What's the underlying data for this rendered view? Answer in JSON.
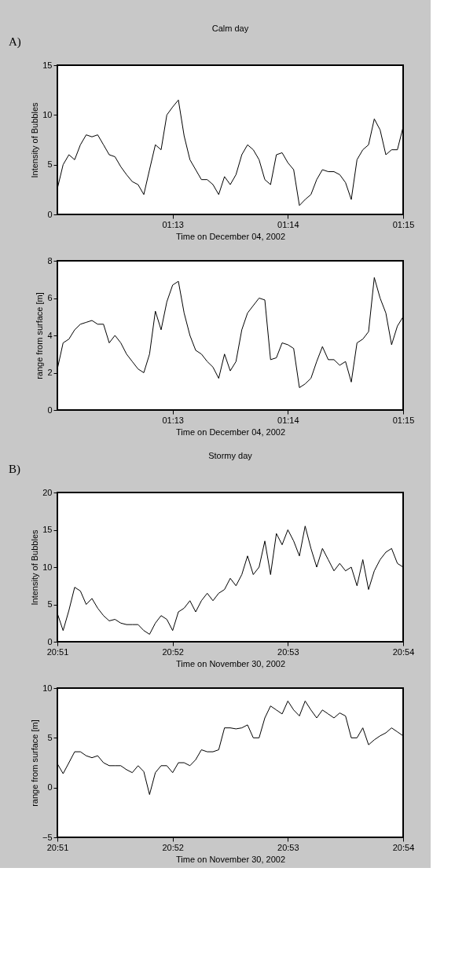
{
  "chart_data": [
    {
      "type": "line",
      "title": "Calm day",
      "annotations": [
        "A)"
      ],
      "xlabel": "Time on December 04, 2002",
      "ylabel": "Intensity of Bubbles",
      "x": [
        1.2,
        1.20083,
        1.20167,
        1.2025,
        1.20333,
        1.20417,
        1.205,
        1.20583,
        1.20667,
        1.2075,
        1.20833,
        1.20917,
        1.21,
        1.21083,
        1.21167,
        1.2125,
        1.21333,
        1.21417,
        1.215,
        1.21583,
        1.21667,
        1.2175,
        1.21833,
        1.21917,
        1.22,
        1.22083,
        1.22167,
        1.2225,
        1.22333,
        1.22417,
        1.225,
        1.22583,
        1.22667,
        1.2275,
        1.22833,
        1.22917,
        1.23,
        1.23083,
        1.23167,
        1.2325,
        1.23333,
        1.23417,
        1.235,
        1.23583,
        1.23667,
        1.2375,
        1.23833,
        1.23917,
        1.24,
        1.24083,
        1.24167,
        1.2425,
        1.24333,
        1.24417,
        1.245,
        1.24583,
        1.24667,
        1.2475,
        1.24833,
        1.24917,
        1.25
      ],
      "series": [
        {
          "color": "#000000",
          "values": [
            2.6,
            5.0,
            6.0,
            5.5,
            7.0,
            8.0,
            7.8,
            8.0,
            7.0,
            6.0,
            5.8,
            4.8,
            4.0,
            3.3,
            3.0,
            2.0,
            4.5,
            7.0,
            6.5,
            10.0,
            10.8,
            11.5,
            7.9,
            5.5,
            4.5,
            3.5,
            3.5,
            3.0,
            2.0,
            3.8,
            3.0,
            4.0,
            6.0,
            7.0,
            6.5,
            5.5,
            3.5,
            3.0,
            6.0,
            6.2,
            5.2,
            4.5,
            0.9,
            1.5,
            2.0,
            3.5,
            4.5,
            4.3,
            4.3,
            4.0,
            3.2,
            1.5,
            5.5,
            6.5,
            7.0,
            9.6,
            8.5,
            6.0,
            6.5,
            6.5,
            8.8
          ]
        }
      ],
      "xlim": [
        1.2,
        1.25
      ],
      "xticks": [
        {
          "value": 1.21667,
          "label": "01:13"
        },
        {
          "value": 1.23333,
          "label": "01:14"
        },
        {
          "value": 1.25,
          "label": "01:15"
        }
      ],
      "ylim": [
        0,
        15
      ],
      "yticks": [
        0,
        5,
        10,
        15
      ],
      "grid": false
    },
    {
      "type": "line",
      "xlabel": "Time on December 04, 2002",
      "ylabel": "range from surface [m]",
      "x": [
        1.2,
        1.20083,
        1.20167,
        1.2025,
        1.20333,
        1.20417,
        1.205,
        1.20583,
        1.20667,
        1.2075,
        1.20833,
        1.20917,
        1.21,
        1.21083,
        1.21167,
        1.2125,
        1.21333,
        1.21417,
        1.215,
        1.21583,
        1.21667,
        1.2175,
        1.21833,
        1.21917,
        1.22,
        1.22083,
        1.22167,
        1.2225,
        1.22333,
        1.22417,
        1.225,
        1.22583,
        1.22667,
        1.2275,
        1.22833,
        1.22917,
        1.23,
        1.23083,
        1.23167,
        1.2325,
        1.23333,
        1.23417,
        1.235,
        1.23583,
        1.23667,
        1.2375,
        1.23833,
        1.23917,
        1.24,
        1.24083,
        1.24167,
        1.2425,
        1.24333,
        1.24417,
        1.245,
        1.24583,
        1.24667,
        1.2475,
        1.24833,
        1.24917,
        1.25
      ],
      "series": [
        {
          "color": "#000000",
          "values": [
            2.2,
            3.6,
            3.8,
            4.3,
            4.6,
            4.7,
            4.8,
            4.6,
            4.6,
            3.6,
            4.0,
            3.6,
            3.0,
            2.6,
            2.2,
            2.0,
            3.0,
            5.3,
            4.3,
            5.8,
            6.7,
            6.9,
            5.2,
            4.0,
            3.2,
            3.0,
            2.6,
            2.3,
            1.7,
            3.0,
            2.1,
            2.6,
            4.3,
            5.2,
            5.6,
            6.0,
            5.9,
            2.7,
            2.8,
            3.6,
            3.5,
            3.3,
            1.2,
            1.4,
            1.7,
            2.6,
            3.4,
            2.7,
            2.7,
            2.4,
            2.6,
            1.5,
            3.6,
            3.8,
            4.2,
            7.1,
            6.0,
            5.2,
            3.5,
            4.5,
            5.0
          ]
        }
      ],
      "xlim": [
        1.2,
        1.25
      ],
      "xticks": [
        {
          "value": 1.21667,
          "label": "01:13"
        },
        {
          "value": 1.23333,
          "label": "01:14"
        },
        {
          "value": 1.25,
          "label": "01:15"
        }
      ],
      "ylim": [
        0,
        8
      ],
      "yticks": [
        0,
        2,
        4,
        6,
        8
      ],
      "grid": false
    },
    {
      "type": "line",
      "title": "Stormy day",
      "annotations": [
        "B)"
      ],
      "xlabel": "Time on November 30, 2002",
      "ylabel": "Intensity of Bubbles",
      "x": [
        20.85,
        20.85083,
        20.85167,
        20.8525,
        20.85333,
        20.85417,
        20.855,
        20.85583,
        20.85667,
        20.8575,
        20.85833,
        20.85917,
        20.86,
        20.86083,
        20.86167,
        20.8625,
        20.86333,
        20.86417,
        20.865,
        20.86583,
        20.86667,
        20.8675,
        20.86833,
        20.86917,
        20.87,
        20.87083,
        20.87167,
        20.8725,
        20.87333,
        20.87417,
        20.875,
        20.87583,
        20.87667,
        20.8775,
        20.87833,
        20.87917,
        20.88,
        20.88083,
        20.88167,
        20.8825,
        20.88333,
        20.88417,
        20.885,
        20.88583,
        20.88667,
        20.8875,
        20.88833,
        20.88917,
        20.89,
        20.89083,
        20.89167,
        20.8925,
        20.89333,
        20.89417,
        20.895,
        20.89583,
        20.89667,
        20.8975,
        20.89833,
        20.89917,
        20.9
      ],
      "series": [
        {
          "color": "#000000",
          "values": [
            3.8,
            1.5,
            4.2,
            7.3,
            6.8,
            5.0,
            5.8,
            4.5,
            3.5,
            2.8,
            3.0,
            2.5,
            2.3,
            2.3,
            2.3,
            1.5,
            1.0,
            2.5,
            3.5,
            3.0,
            1.5,
            4.0,
            4.5,
            5.5,
            4.0,
            5.5,
            6.5,
            5.5,
            6.5,
            7.0,
            8.5,
            7.5,
            9.0,
            11.5,
            9.0,
            10.0,
            13.5,
            9.0,
            14.5,
            13.0,
            15.0,
            13.5,
            11.5,
            15.5,
            12.5,
            10.0,
            12.5,
            11.0,
            9.5,
            10.5,
            9.5,
            10.0,
            7.5,
            11.0,
            7.0,
            9.5,
            11.0,
            12.0,
            12.5,
            10.5,
            10.0
          ]
        }
      ],
      "xlim": [
        20.85,
        20.9
      ],
      "xticks": [
        {
          "value": 20.85,
          "label": "20:51"
        },
        {
          "value": 20.86667,
          "label": "20:52"
        },
        {
          "value": 20.88333,
          "label": "20:53"
        },
        {
          "value": 20.9,
          "label": "20:54"
        }
      ],
      "ylim": [
        0,
        20
      ],
      "yticks": [
        0,
        5,
        10,
        15,
        20
      ],
      "grid": false
    },
    {
      "type": "line",
      "xlabel": "Time on November 30, 2002",
      "ylabel": "range from surface [m]",
      "x": [
        20.85,
        20.85083,
        20.85167,
        20.8525,
        20.85333,
        20.85417,
        20.855,
        20.85583,
        20.85667,
        20.8575,
        20.85833,
        20.85917,
        20.86,
        20.86083,
        20.86167,
        20.8625,
        20.86333,
        20.86417,
        20.865,
        20.86583,
        20.86667,
        20.8675,
        20.86833,
        20.86917,
        20.87,
        20.87083,
        20.87167,
        20.8725,
        20.87333,
        20.87417,
        20.875,
        20.87583,
        20.87667,
        20.8775,
        20.87833,
        20.87917,
        20.88,
        20.88083,
        20.88167,
        20.8825,
        20.88333,
        20.88417,
        20.885,
        20.88583,
        20.88667,
        20.8875,
        20.88833,
        20.88917,
        20.89,
        20.89083,
        20.89167,
        20.8925,
        20.89333,
        20.89417,
        20.895,
        20.89583,
        20.89667,
        20.8975,
        20.89833,
        20.89917,
        20.9
      ],
      "series": [
        {
          "color": "#000000",
          "values": [
            2.4,
            1.4,
            2.5,
            3.6,
            3.6,
            3.2,
            3.0,
            3.2,
            2.5,
            2.2,
            2.2,
            2.2,
            1.8,
            1.5,
            2.2,
            1.6,
            -0.7,
            1.5,
            2.2,
            2.2,
            1.5,
            2.5,
            2.5,
            2.2,
            2.8,
            3.8,
            3.6,
            3.6,
            3.8,
            6.0,
            6.0,
            5.9,
            6.0,
            6.3,
            5.0,
            5.0,
            7.0,
            8.2,
            7.8,
            7.4,
            8.7,
            7.8,
            7.2,
            8.7,
            7.8,
            7.0,
            7.8,
            7.4,
            7.0,
            7.5,
            7.2,
            5.0,
            5.0,
            6.0,
            4.3,
            4.8,
            5.2,
            5.5,
            6.0,
            5.6,
            5.2
          ]
        }
      ],
      "xlim": [
        20.85,
        20.9
      ],
      "xticks": [
        {
          "value": 20.85,
          "label": "20:51"
        },
        {
          "value": 20.86667,
          "label": "20:52"
        },
        {
          "value": 20.88333,
          "label": "20:53"
        },
        {
          "value": 20.9,
          "label": "20:54"
        }
      ],
      "ylim": [
        -5,
        10
      ],
      "yticks": [
        -5,
        0,
        5,
        10
      ],
      "grid": false
    }
  ]
}
